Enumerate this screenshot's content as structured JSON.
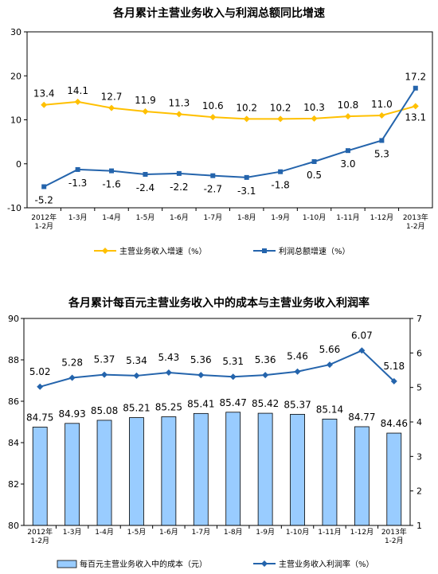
{
  "chart_data": [
    {
      "type": "line",
      "title": "各月累计主营业务收入与利润总额同比增速",
      "categories": [
        "2012年|1-2月",
        "1-3月",
        "1-4月",
        "1-5月",
        "1-6月",
        "1-7月",
        "1-8月",
        "1-9月",
        "1-10月",
        "1-11月",
        "1-12月",
        "2013年|1-2月"
      ],
      "ylim": [
        -10,
        30
      ],
      "yticks": [
        "30",
        "20",
        "10",
        "0",
        "-10"
      ],
      "series": [
        {
          "name": "主营业务收入增速（%）",
          "color": "#FFC000",
          "marker": "diamond",
          "values": [
            13.4,
            14.1,
            12.7,
            11.9,
            11.3,
            10.6,
            10.2,
            10.2,
            10.3,
            10.8,
            11.0,
            13.1
          ],
          "labels": [
            "13.4",
            "14.1",
            "12.7",
            "11.9",
            "11.3",
            "10.6",
            "10.2",
            "10.2",
            "10.3",
            "10.8",
            "11.0",
            "13.1"
          ]
        },
        {
          "name": "利润总额增速（%）",
          "color": "#2464AC",
          "marker": "square",
          "values": [
            -5.2,
            -1.3,
            -1.6,
            -2.4,
            -2.2,
            -2.7,
            -3.1,
            -1.8,
            0.5,
            3.0,
            5.3,
            17.2
          ],
          "labels": [
            "-5.2",
            "-1.3",
            "-1.6",
            "-2.4",
            "-2.2",
            "-2.7",
            "-3.1",
            "-1.8",
            "0.5",
            "3.0",
            "5.3",
            "17.2"
          ]
        }
      ],
      "grid": false,
      "legend": "bottom"
    },
    {
      "type": "bar",
      "title": "各月累计每百元主营业务收入中的成本与主营业务收入利润率",
      "categories": [
        "2012年|1-2月",
        "1-3月",
        "1-4月",
        "1-5月",
        "1-6月",
        "1-7月",
        "1-8月",
        "1-9月",
        "1-10月",
        "1-11月",
        "1-12月",
        "2013年|1-2月"
      ],
      "ylim": [
        80,
        90
      ],
      "yticks": [
        "90",
        "88",
        "86",
        "84",
        "82",
        "80"
      ],
      "y2lim": [
        1,
        7
      ],
      "y2ticks": [
        "7",
        "6",
        "5",
        "4",
        "3",
        "2",
        "1"
      ],
      "series": [
        {
          "name": "每百元主营业务收入中的成本（元）",
          "type": "bar",
          "axis": "left",
          "color": "#99CCFF",
          "values": [
            84.75,
            84.93,
            85.08,
            85.21,
            85.25,
            85.41,
            85.47,
            85.42,
            85.37,
            85.14,
            84.77,
            84.46
          ],
          "labels": [
            "84.75",
            "84.93",
            "85.08",
            "85.21",
            "85.25",
            "85.41",
            "85.47",
            "85.42",
            "85.37",
            "85.14",
            "84.77",
            "84.46"
          ]
        },
        {
          "name": "主营业务收入利润率（%）",
          "type": "line",
          "axis": "right",
          "color": "#2464AC",
          "marker": "diamond",
          "values": [
            5.02,
            5.28,
            5.37,
            5.34,
            5.43,
            5.36,
            5.31,
            5.36,
            5.46,
            5.66,
            6.07,
            5.18
          ],
          "labels": [
            "5.02",
            "5.28",
            "5.37",
            "5.34",
            "5.43",
            "5.36",
            "5.31",
            "5.36",
            "5.46",
            "5.66",
            "6.07",
            "5.18"
          ]
        }
      ],
      "grid": false,
      "legend": "bottom"
    }
  ]
}
